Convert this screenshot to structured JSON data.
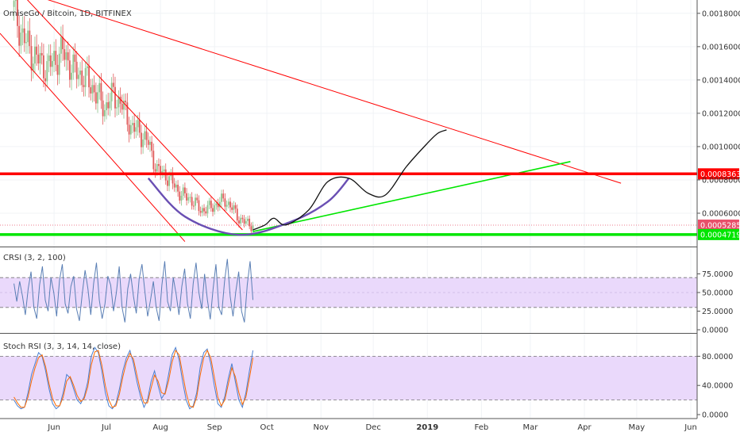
{
  "main_title": "OmiseGo / Bitcoin, 1D, BITFINEX",
  "crsi_title": "CRSI (3, 2, 100)",
  "stoch_title": "Stoch RSI (3, 3, 14, 14, close)",
  "colors": {
    "up": "#8cc38c",
    "down": "#e05a5a",
    "red_line": "#ff0000",
    "green_line": "#00e600",
    "arc": "#6a4fb3",
    "projection": "#111111",
    "band": "#ead9fb",
    "crsi_line": "#5a7fb5",
    "stoch_k": "#4a7fd0",
    "stoch_d": "#ff6a00",
    "tag_current": "#e8506a",
    "tag_red": "#ff0000",
    "tag_green": "#00e600"
  },
  "chart_data": [
    {
      "type": "candlestick",
      "title": "OmiseGo / Bitcoin, 1D, BITFINEX",
      "x_axis_labels": [
        "Jun",
        "Jul",
        "Aug",
        "Sep",
        "Oct",
        "Nov",
        "Dec",
        "2019",
        "Feb",
        "Mar",
        "Apr",
        "May",
        "Jun"
      ],
      "y_ticks": [
        "0.00180000",
        "0.00160000",
        "0.00140000",
        "0.00120000",
        "0.00100000",
        "0.00080000",
        "0.00060000"
      ],
      "ylim": [
        0.0004,
        0.00188
      ],
      "price_tags": [
        "0.00083634",
        "0.00052858",
        "0.00047198"
      ],
      "levels": [
        {
          "name": "resistance",
          "value": 0.00083634
        },
        {
          "name": "support",
          "value": 0.00047198
        }
      ],
      "close_series": [
        {
          "date": "2018-05-09",
          "close": 0.00182
        },
        {
          "date": "2018-05-14",
          "close": 0.00166
        },
        {
          "date": "2018-05-20",
          "close": 0.00155
        },
        {
          "date": "2018-05-28",
          "close": 0.00147
        },
        {
          "date": "2018-06-01",
          "close": 0.00152
        },
        {
          "date": "2018-06-06",
          "close": 0.00157
        },
        {
          "date": "2018-06-12",
          "close": 0.00146
        },
        {
          "date": "2018-06-18",
          "close": 0.00142
        },
        {
          "date": "2018-06-24",
          "close": 0.00134
        },
        {
          "date": "2018-06-30",
          "close": 0.00123
        },
        {
          "date": "2018-07-02",
          "close": 0.00127
        },
        {
          "date": "2018-07-05",
          "close": 0.00131
        },
        {
          "date": "2018-07-10",
          "close": 0.00125
        },
        {
          "date": "2018-07-15",
          "close": 0.00112
        },
        {
          "date": "2018-07-20",
          "close": 0.00109
        },
        {
          "date": "2018-07-25",
          "close": 0.00102
        },
        {
          "date": "2018-07-30",
          "close": 0.00086
        },
        {
          "date": "2018-08-04",
          "close": 0.00083
        },
        {
          "date": "2018-08-08",
          "close": 0.00078
        },
        {
          "date": "2018-08-13",
          "close": 0.00071
        },
        {
          "date": "2018-08-18",
          "close": 0.00069
        },
        {
          "date": "2018-08-24",
          "close": 0.00062
        },
        {
          "date": "2018-08-29",
          "close": 0.00063
        },
        {
          "date": "2018-09-03",
          "close": 0.00066
        },
        {
          "date": "2018-09-07",
          "close": 0.00068
        },
        {
          "date": "2018-09-11",
          "close": 0.00063
        },
        {
          "date": "2018-09-15",
          "close": 0.00057
        },
        {
          "date": "2018-09-19",
          "close": 0.00054
        },
        {
          "date": "2018-09-23",
          "close": 0.00052858
        }
      ],
      "trendlines": [
        {
          "name": "long-term-resistance",
          "from": [
            "2018-05-23",
            0.0019
          ],
          "to": [
            "2019-04-22",
            0.00078
          ]
        },
        {
          "name": "channel-upper",
          "from": [
            "2018-05-15",
            0.0019
          ],
          "to": [
            "2018-09-17",
            0.0005
          ]
        },
        {
          "name": "channel-lower",
          "from": [
            "2018-05-01",
            0.00168
          ],
          "to": [
            "2018-08-15",
            0.00043
          ]
        },
        {
          "name": "rising-support",
          "from": [
            "2018-09-23",
            0.00049
          ],
          "to": [
            "2019-03-24",
            0.00091
          ]
        }
      ],
      "arc_curve": [
        [
          "2018-07-25",
          0.00081
        ],
        [
          "2018-08-15",
          0.00058
        ],
        [
          "2018-09-15",
          0.00047
        ],
        [
          "2018-10-15",
          0.00055
        ],
        [
          "2018-11-05",
          0.00067
        ],
        [
          "2018-11-17",
          0.00081
        ]
      ],
      "projection_path": [
        [
          "2018-09-23",
          0.0005
        ],
        [
          "2018-09-30",
          0.00053
        ],
        [
          "2018-10-05",
          0.00057
        ],
        [
          "2018-10-12",
          0.00053
        ],
        [
          "2018-10-25",
          0.00062
        ],
        [
          "2018-11-05",
          0.00079
        ],
        [
          "2018-11-17",
          0.00081
        ],
        [
          "2018-11-28",
          0.00072
        ],
        [
          "2018-12-08",
          0.00071
        ],
        [
          "2018-12-20",
          0.00088
        ],
        [
          "2019-01-01",
          0.00102
        ],
        [
          "2019-01-07",
          0.00108
        ],
        [
          "2019-01-12",
          0.0011
        ]
      ]
    },
    {
      "type": "line",
      "title": "CRSI (3, 2, 100)",
      "y_ticks": [
        "75.0000",
        "50.0000",
        "25.0000",
        "0.0000"
      ],
      "ylim": [
        0,
        100
      ],
      "band": [
        30,
        70
      ],
      "x_start": "2018-05-09",
      "x_end": "2018-09-23",
      "values": [
        62,
        38,
        65,
        45,
        20,
        55,
        78,
        30,
        15,
        60,
        85,
        40,
        25,
        70,
        50,
        18,
        66,
        88,
        35,
        22,
        58,
        72,
        28,
        12,
        48,
        80,
        55,
        20,
        62,
        90,
        40,
        15,
        35,
        72,
        60,
        25,
        50,
        85,
        30,
        10,
        55,
        75,
        45,
        22,
        68,
        88,
        52,
        18,
        40,
        65,
        30,
        12,
        60,
        92,
        38,
        25,
        70,
        48,
        20,
        58,
        82,
        35,
        15,
        62,
        90,
        50,
        28,
        75,
        40,
        14,
        55,
        88,
        30,
        20,
        64,
        95,
        45,
        18,
        52,
        78,
        25,
        10,
        60,
        92,
        40
      ],
      "value_count": 85
    },
    {
      "type": "line",
      "title": "Stoch RSI (3, 3, 14, 14, close)",
      "y_ticks": [
        "80.0000",
        "40.0000",
        "0.0000"
      ],
      "ylim": [
        0,
        100
      ],
      "band": [
        20,
        80
      ],
      "x_start": "2018-05-09",
      "x_end": "2018-09-23",
      "series": [
        {
          "values": [
            20,
            12,
            8,
            10,
            30,
            55,
            70,
            85,
            80,
            60,
            35,
            15,
            8,
            12,
            30,
            55,
            50,
            35,
            20,
            15,
            25,
            45,
            80,
            92,
            85,
            60,
            30,
            12,
            8,
            15,
            35,
            60,
            78,
            88,
            70,
            45,
            25,
            10,
            20,
            45,
            60,
            40,
            22,
            30,
            55,
            82,
            92,
            75,
            45,
            20,
            8,
            12,
            30,
            65,
            85,
            90,
            70,
            40,
            15,
            10,
            25,
            50,
            70,
            45,
            20,
            10,
            30,
            60,
            88
          ]
        },
        {
          "values": [
            24,
            16,
            10,
            10,
            24,
            46,
            64,
            78,
            82,
            66,
            42,
            22,
            12,
            12,
            24,
            46,
            52,
            40,
            26,
            18,
            22,
            38,
            68,
            86,
            88,
            68,
            40,
            20,
            10,
            12,
            28,
            52,
            72,
            84,
            76,
            54,
            32,
            16,
            16,
            36,
            54,
            46,
            30,
            28,
            46,
            72,
            88,
            82,
            56,
            30,
            12,
            10,
            24,
            54,
            78,
            88,
            78,
            52,
            24,
            12,
            20,
            42,
            64,
            52,
            30,
            14,
            24,
            50,
            78
          ]
        }
      ]
    }
  ]
}
